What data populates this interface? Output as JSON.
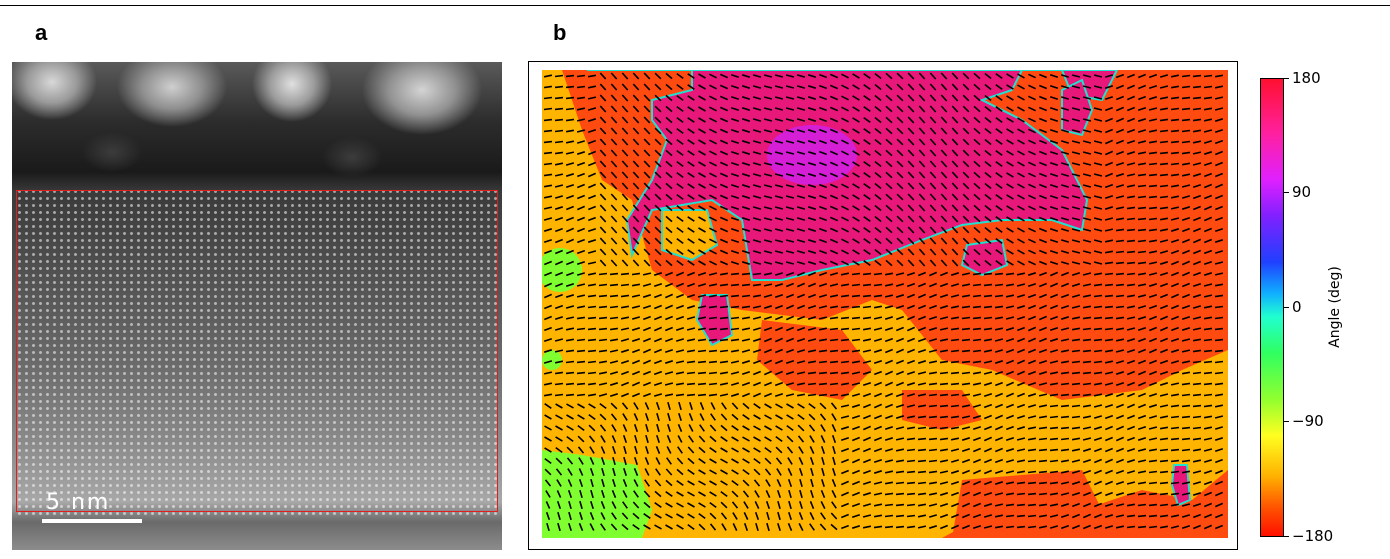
{
  "panel_a": {
    "label": "a",
    "scale_bar": "5 nm"
  },
  "panel_b": {
    "label": "b",
    "colorbar": {
      "title": "Angle (deg)",
      "ticks": [
        "180",
        "90",
        "0",
        "−90",
        "−180"
      ],
      "range": [
        -180,
        180
      ],
      "colormap": "hsv"
    }
  },
  "colors": {
    "roi_box": "#e11d1d",
    "region_magenta": "#e8177a",
    "region_orange_red": "#ff4a10",
    "region_orange": "#ffb400",
    "region_green": "#80ff30",
    "arrow": "#000000"
  }
}
